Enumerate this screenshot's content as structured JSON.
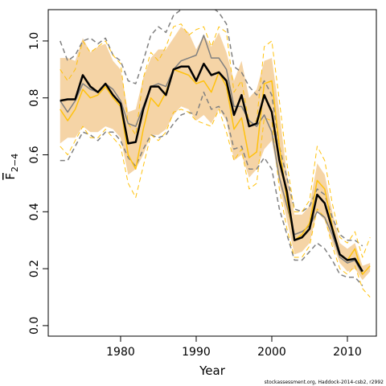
{
  "chart_data": {
    "type": "line",
    "xlabel": "Year",
    "ylabel": {
      "main": "F",
      "sub": "2−4"
    },
    "footnote": "stockassessment.org, Haddock-2014-csb2, r2992",
    "x": [
      1972,
      1973,
      1974,
      1975,
      1976,
      1977,
      1978,
      1979,
      1980,
      1981,
      1982,
      1983,
      1984,
      1985,
      1986,
      1987,
      1988,
      1989,
      1990,
      1991,
      1992,
      1993,
      1994,
      1995,
      1996,
      1997,
      1998,
      1999,
      2000,
      2001,
      2002,
      2003,
      2004,
      2005,
      2006,
      2007,
      2008,
      2009,
      2010,
      2011,
      2012,
      2013
    ],
    "xlim": [
      1970.43,
      2013.83
    ],
    "xticks": [
      1980,
      1990,
      2000,
      2010
    ],
    "ylim": [
      -0.037,
      1.11
    ],
    "yticks": [
      {
        "value": 0,
        "label": "0.0"
      },
      0.2,
      0.4,
      0.6,
      0.8,
      {
        "value": 1,
        "label": "1.0"
      }
    ],
    "band": {
      "color": "#f5d4a6",
      "upper": [
        0.94,
        0.94,
        0.93,
        1.01,
        0.96,
        0.98,
        0.99,
        0.93,
        0.9,
        0.75,
        0.76,
        0.87,
        0.94,
        0.97,
        0.97,
        1.01,
        1.05,
        1.03,
        0.97,
        1.02,
        0.98,
        1.03,
        0.96,
        0.86,
        0.93,
        0.8,
        0.83,
        0.93,
        0.94,
        0.75,
        0.53,
        0.39,
        0.39,
        0.42,
        0.57,
        0.53,
        0.4,
        0.29,
        0.27,
        0.29,
        0.21,
        0.22
      ],
      "lower": [
        0.64,
        0.66,
        0.66,
        0.7,
        0.68,
        0.68,
        0.7,
        0.69,
        0.66,
        0.53,
        0.55,
        0.6,
        0.67,
        0.67,
        0.69,
        0.74,
        0.77,
        0.76,
        0.72,
        0.74,
        0.71,
        0.76,
        0.72,
        0.58,
        0.6,
        0.52,
        0.55,
        0.62,
        0.65,
        0.5,
        0.37,
        0.25,
        0.26,
        0.29,
        0.4,
        0.37,
        0.29,
        0.22,
        0.19,
        0.2,
        0.16,
        0.19
      ]
    },
    "series": [
      {
        "color": "#808080",
        "dash": true,
        "width": 1.5,
        "values": [
          1.0,
          0.93,
          0.95,
          1.0,
          1.01,
          0.99,
          1.01,
          0.95,
          0.93,
          0.86,
          0.85,
          0.93,
          1.02,
          1.05,
          1.03,
          1.09,
          1.11,
          1.12,
          1.12,
          1.12,
          1.12,
          1.1,
          1.06,
          0.91,
          0.89,
          0.84,
          0.81,
          0.86,
          0.81,
          0.63,
          0.52,
          0.41,
          0.4,
          0.42,
          0.48,
          0.46,
          0.38,
          0.32,
          0.3,
          0.3,
          0.28,
          null
        ]
      },
      {
        "color": "#808080",
        "dash": true,
        "width": 1.5,
        "values": [
          0.58,
          0.58,
          0.63,
          0.68,
          0.67,
          0.65,
          0.68,
          0.68,
          0.65,
          0.59,
          0.56,
          0.62,
          0.67,
          0.66,
          0.67,
          0.71,
          0.74,
          0.75,
          0.74,
          0.82,
          0.76,
          0.77,
          0.73,
          0.62,
          0.63,
          0.55,
          0.55,
          0.59,
          0.55,
          0.41,
          0.32,
          0.23,
          0.23,
          0.26,
          0.29,
          0.27,
          0.23,
          0.18,
          0.17,
          0.17,
          0.14,
          null
        ]
      },
      {
        "color": "#ffc20e",
        "dash": true,
        "width": 1,
        "values": [
          0.9,
          0.86,
          0.9,
          1.0,
          0.96,
          0.98,
          1.0,
          0.95,
          0.92,
          0.71,
          0.67,
          0.87,
          0.96,
          0.93,
          0.98,
          1.05,
          1.06,
          1.02,
          1.04,
          1.05,
          0.98,
          1.05,
          1.03,
          0.82,
          0.86,
          0.71,
          0.72,
          0.98,
          1.0,
          0.79,
          0.57,
          0.4,
          0.4,
          0.44,
          0.63,
          0.58,
          0.43,
          0.31,
          0.29,
          0.33,
          0.24,
          0.31
        ]
      },
      {
        "color": "#ffc20e",
        "dash": true,
        "width": 1,
        "values": [
          0.63,
          0.6,
          0.65,
          0.7,
          0.66,
          0.66,
          0.69,
          0.66,
          0.63,
          0.5,
          0.45,
          0.56,
          0.67,
          0.65,
          0.68,
          0.75,
          0.76,
          0.75,
          0.72,
          0.71,
          0.7,
          0.76,
          0.68,
          0.58,
          0.62,
          0.48,
          0.5,
          0.73,
          0.72,
          0.48,
          0.34,
          0.24,
          0.24,
          0.28,
          0.41,
          0.38,
          0.28,
          0.2,
          0.18,
          0.21,
          0.13,
          0.1
        ]
      },
      {
        "color": "#808080",
        "dash": false,
        "width": 1.5,
        "values": [
          0.79,
          0.75,
          0.79,
          0.85,
          0.83,
          0.82,
          0.85,
          0.83,
          0.79,
          0.71,
          0.7,
          0.77,
          0.84,
          0.85,
          0.84,
          0.9,
          0.93,
          0.94,
          0.95,
          1.02,
          0.94,
          0.94,
          0.9,
          0.77,
          0.77,
          0.72,
          0.7,
          0.74,
          0.68,
          0.52,
          0.42,
          0.32,
          0.33,
          0.35,
          0.4,
          0.38,
          0.32,
          0.24,
          0.22,
          0.23,
          0.18,
          null
        ]
      },
      {
        "color": "#ffc20e",
        "dash": false,
        "width": 1.5,
        "values": [
          0.76,
          0.72,
          0.76,
          0.83,
          0.8,
          0.81,
          0.84,
          0.8,
          0.77,
          0.6,
          0.55,
          0.69,
          0.8,
          0.77,
          0.82,
          0.9,
          0.89,
          0.88,
          0.85,
          0.86,
          0.82,
          0.89,
          0.84,
          0.69,
          0.73,
          0.59,
          0.61,
          0.85,
          0.86,
          0.63,
          0.44,
          0.3,
          0.32,
          0.36,
          0.51,
          0.48,
          0.35,
          0.25,
          0.23,
          0.27,
          0.18,
          0.21
        ]
      },
      {
        "color": "#000000",
        "dash": false,
        "width": 2.5,
        "values": [
          0.79,
          0.795,
          0.795,
          0.88,
          0.84,
          0.82,
          0.85,
          0.81,
          0.78,
          0.64,
          0.645,
          0.76,
          0.84,
          0.84,
          0.81,
          0.9,
          0.91,
          0.91,
          0.86,
          0.92,
          0.88,
          0.89,
          0.86,
          0.74,
          0.81,
          0.7,
          0.71,
          0.81,
          0.75,
          0.58,
          0.47,
          0.3,
          0.31,
          0.34,
          0.46,
          0.43,
          0.34,
          0.25,
          0.23,
          0.235,
          0.19,
          null
        ]
      }
    ]
  }
}
